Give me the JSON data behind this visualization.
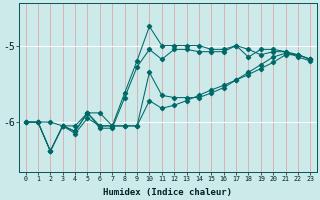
{
  "xlabel": "Humidex (Indice chaleur)",
  "bg_color": "#cceaea",
  "line_color": "#006868",
  "grid_color_v": "#dda8a8",
  "grid_color_h": "#ffffff",
  "xlim": [
    -0.5,
    23.5
  ],
  "ylim": [
    -6.65,
    -4.45
  ],
  "yticks": [
    -6,
    -5
  ],
  "xticks": [
    0,
    1,
    2,
    3,
    4,
    5,
    6,
    7,
    8,
    9,
    10,
    11,
    12,
    13,
    14,
    15,
    16,
    17,
    18,
    19,
    20,
    21,
    22,
    23
  ],
  "line1_x": [
    0,
    1,
    2,
    3,
    4,
    5,
    6,
    7,
    8,
    9,
    10,
    11,
    12,
    13,
    14,
    15,
    16,
    17,
    18,
    19,
    20,
    21,
    22,
    23
  ],
  "line1_y": [
    -6.0,
    -6.0,
    -6.38,
    -6.05,
    -6.12,
    -5.88,
    -6.05,
    -6.05,
    -5.62,
    -5.2,
    -4.75,
    -5.0,
    -5.0,
    -5.0,
    -5.0,
    -5.05,
    -5.05,
    -5.0,
    -5.15,
    -5.05,
    -5.05,
    -5.08,
    -5.12,
    -5.18
  ],
  "line2_x": [
    0,
    1,
    2,
    3,
    4,
    5,
    6,
    7,
    8,
    9,
    10,
    11,
    12,
    13,
    14,
    15,
    16,
    17,
    18,
    19,
    20,
    21,
    22,
    23
  ],
  "line2_y": [
    -6.0,
    -6.0,
    -6.38,
    -6.05,
    -6.12,
    -5.88,
    -6.08,
    -6.08,
    -5.68,
    -5.28,
    -5.05,
    -5.18,
    -5.05,
    -5.05,
    -5.08,
    -5.08,
    -5.08,
    -5.0,
    -5.05,
    -5.12,
    -5.08,
    -5.08,
    -5.15,
    -5.2
  ],
  "line3_x": [
    0,
    1,
    2,
    3,
    4,
    5,
    6,
    7,
    8,
    9,
    10,
    11,
    12,
    13,
    14,
    15,
    16,
    17,
    18,
    19,
    20,
    21,
    22,
    23
  ],
  "line3_y": [
    -6.0,
    -6.0,
    -6.0,
    -6.05,
    -6.05,
    -5.88,
    -5.88,
    -6.05,
    -6.05,
    -6.05,
    -5.35,
    -5.65,
    -5.68,
    -5.68,
    -5.68,
    -5.62,
    -5.55,
    -5.45,
    -5.35,
    -5.25,
    -5.15,
    -5.1,
    -5.12,
    -5.18
  ],
  "line4_x": [
    1,
    2,
    3,
    4,
    5,
    6,
    7,
    8,
    9,
    10,
    11,
    12,
    13,
    14,
    15,
    16,
    17,
    18,
    19,
    20,
    21,
    22,
    23
  ],
  "line4_y": [
    -6.0,
    -6.38,
    -6.05,
    -6.15,
    -5.95,
    -6.05,
    -6.05,
    -6.05,
    -6.05,
    -5.72,
    -5.82,
    -5.78,
    -5.72,
    -5.65,
    -5.58,
    -5.52,
    -5.45,
    -5.38,
    -5.3,
    -5.22,
    -5.12,
    -5.12,
    -5.18
  ]
}
